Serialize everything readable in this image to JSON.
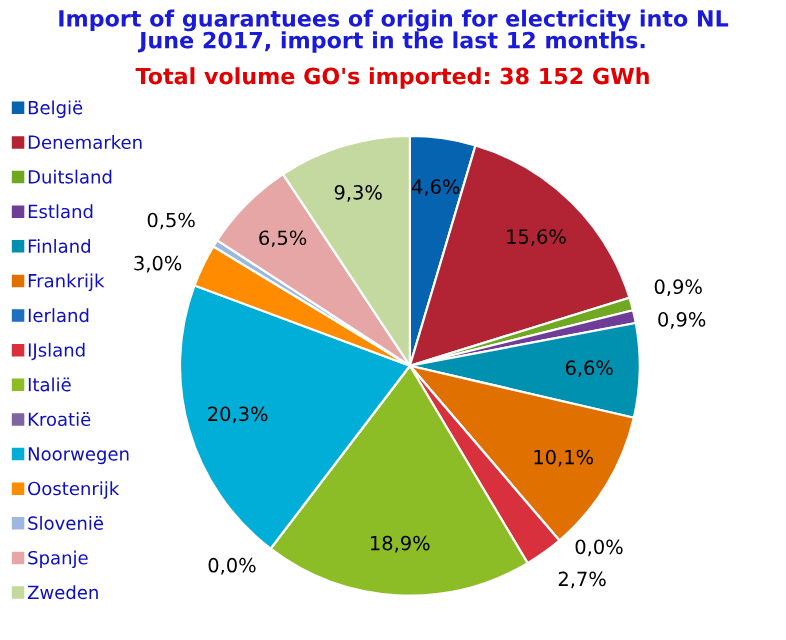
{
  "chart_data": {
    "type": "pie",
    "title": "Import of guarantuees of origin for electricity into NL\nJune 2017, import in the last 12 months.",
    "subtitle": "Total volume GO's imported: 38 152 GWh",
    "categories": [
      "België",
      "Denemarken",
      "Duitsland",
      "Estland",
      "Finland",
      "Frankrijk",
      "Ierland",
      "IJsland",
      "Italië",
      "Kroatië",
      "Noorwegen",
      "Oostenrijk",
      "Slovenië",
      "Spanje",
      "Zweden"
    ],
    "values": [
      4.6,
      15.6,
      0.9,
      0.9,
      6.6,
      10.1,
      0.0,
      2.7,
      18.9,
      0.0,
      20.3,
      3.0,
      0.5,
      6.5,
      9.3
    ],
    "value_labels": [
      "4,6%",
      "15,6%",
      "0,9%",
      "0,9%",
      "6,6%",
      "10,1%",
      "0,0%",
      "2,7%",
      "18,9%",
      "0,0%",
      "20,3%",
      "3,0%",
      "0,5%",
      "6,5%",
      "9,3%"
    ],
    "colors": [
      "#0563b0",
      "#b22433",
      "#70a821",
      "#6f3d98",
      "#0090b0",
      "#e07000",
      "#1d6fc0",
      "#d9303e",
      "#8cbd26",
      "#8064a2",
      "#00aed8",
      "#ff8c00",
      "#9db8e0",
      "#e6a6a6",
      "#c4d9a0"
    ],
    "legend": "left"
  }
}
